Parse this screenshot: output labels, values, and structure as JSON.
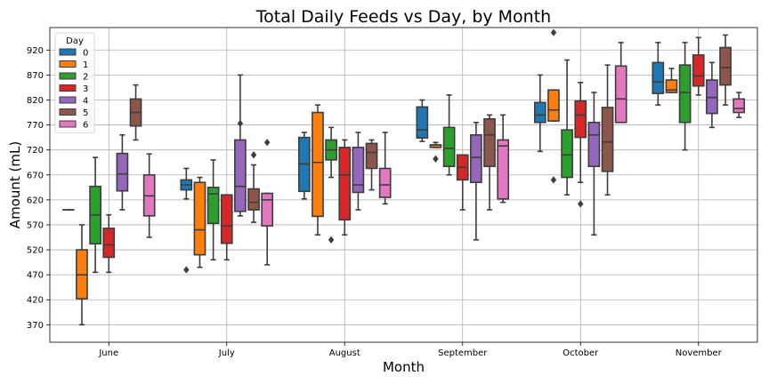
{
  "chart_data": {
    "type": "boxplot",
    "title": "Total Daily Feeds vs Day, by Month",
    "xlabel": "Month",
    "ylabel": "Amount (mL)",
    "categories": [
      "June",
      "July",
      "August",
      "September",
      "October",
      "November"
    ],
    "yticks": [
      370,
      420,
      470,
      520,
      570,
      620,
      670,
      720,
      770,
      820,
      870,
      920
    ],
    "ylim": [
      335,
      965
    ],
    "grid": true,
    "legend": {
      "title": "Day",
      "position": "top-left"
    },
    "series": [
      {
        "name": "0",
        "color": "#1f77b4",
        "boxes": [
          {
            "min": 600,
            "q1": 600,
            "median": 600,
            "q3": 600,
            "max": 600,
            "outliers": []
          },
          {
            "min": 622,
            "q1": 640,
            "median": 650,
            "q3": 660,
            "max": 683,
            "outliers": [
              480
            ]
          },
          {
            "min": 622,
            "q1": 637,
            "median": 692,
            "q3": 745,
            "max": 755,
            "outliers": []
          },
          {
            "min": 737,
            "q1": 744,
            "median": 760,
            "q3": 806,
            "max": 820,
            "outliers": []
          },
          {
            "min": 717,
            "q1": 775,
            "median": 790,
            "q3": 815,
            "max": 870,
            "outliers": []
          },
          {
            "min": 810,
            "q1": 833,
            "median": 856,
            "q3": 895,
            "max": 935,
            "outliers": []
          }
        ]
      },
      {
        "name": "1",
        "color": "#ff7f0e",
        "boxes": [
          {
            "min": 370,
            "q1": 422,
            "median": 470,
            "q3": 520,
            "max": 570,
            "outliers": []
          },
          {
            "min": 485,
            "q1": 510,
            "median": 560,
            "q3": 655,
            "max": 665,
            "outliers": []
          },
          {
            "min": 550,
            "q1": 587,
            "median": 695,
            "q3": 795,
            "max": 810,
            "outliers": []
          },
          {
            "min": 725,
            "q1": 725,
            "median": 730,
            "q3": 730,
            "max": 735,
            "outliers": [
              702
            ]
          },
          {
            "min": 778,
            "q1": 778,
            "median": 800,
            "q3": 840,
            "max": 840,
            "outliers": [
              660,
              955
            ]
          },
          {
            "min": 835,
            "q1": 835,
            "median": 840,
            "q3": 860,
            "max": 883,
            "outliers": []
          }
        ]
      },
      {
        "name": "2",
        "color": "#2ca02c",
        "boxes": [
          {
            "min": 475,
            "q1": 532,
            "median": 590,
            "q3": 647,
            "max": 705,
            "outliers": []
          },
          {
            "min": 500,
            "q1": 573,
            "median": 632,
            "q3": 645,
            "max": 700,
            "outliers": []
          },
          {
            "min": 665,
            "q1": 700,
            "median": 720,
            "q3": 740,
            "max": 765,
            "outliers": [
              540
            ]
          },
          {
            "min": 670,
            "q1": 687,
            "median": 723,
            "q3": 765,
            "max": 830,
            "outliers": []
          },
          {
            "min": 630,
            "q1": 665,
            "median": 710,
            "q3": 760,
            "max": 900,
            "outliers": []
          },
          {
            "min": 720,
            "q1": 775,
            "median": 835,
            "q3": 890,
            "max": 935,
            "outliers": []
          }
        ]
      },
      {
        "name": "3",
        "color": "#d62728",
        "boxes": [
          {
            "min": 475,
            "q1": 505,
            "median": 530,
            "q3": 563,
            "max": 590,
            "outliers": []
          },
          {
            "min": 500,
            "q1": 533,
            "median": 568,
            "q3": 630,
            "max": 630,
            "outliers": []
          },
          {
            "min": 550,
            "q1": 580,
            "median": 670,
            "q3": 725,
            "max": 740,
            "outliers": []
          },
          {
            "min": 600,
            "q1": 660,
            "median": 685,
            "q3": 710,
            "max": 710,
            "outliers": []
          },
          {
            "min": 655,
            "q1": 745,
            "median": 790,
            "q3": 818,
            "max": 855,
            "outliers": [
              612
            ]
          },
          {
            "min": 830,
            "q1": 848,
            "median": 868,
            "q3": 910,
            "max": 945,
            "outliers": []
          }
        ]
      },
      {
        "name": "4",
        "color": "#9467bd",
        "boxes": [
          {
            "min": 600,
            "q1": 638,
            "median": 672,
            "q3": 713,
            "max": 750,
            "outliers": []
          },
          {
            "min": 588,
            "q1": 597,
            "median": 647,
            "q3": 740,
            "max": 870,
            "outliers": [
              773
            ]
          },
          {
            "min": 600,
            "q1": 635,
            "median": 650,
            "q3": 725,
            "max": 755,
            "outliers": []
          },
          {
            "min": 540,
            "q1": 655,
            "median": 705,
            "q3": 750,
            "max": 775,
            "outliers": []
          },
          {
            "min": 550,
            "q1": 687,
            "median": 750,
            "q3": 775,
            "max": 835,
            "outliers": []
          },
          {
            "min": 765,
            "q1": 793,
            "median": 825,
            "q3": 860,
            "max": 895,
            "outliers": []
          }
        ]
      },
      {
        "name": "5",
        "color": "#8c564b",
        "boxes": [
          {
            "min": 740,
            "q1": 768,
            "median": 795,
            "q3": 822,
            "max": 850,
            "outliers": []
          },
          {
            "min": 575,
            "q1": 600,
            "median": 615,
            "q3": 642,
            "max": 690,
            "outliers": [
              710
            ]
          },
          {
            "min": 640,
            "q1": 683,
            "median": 715,
            "q3": 733,
            "max": 740,
            "outliers": []
          },
          {
            "min": 600,
            "q1": 687,
            "median": 750,
            "q3": 782,
            "max": 790,
            "outliers": []
          },
          {
            "min": 630,
            "q1": 677,
            "median": 736,
            "q3": 805,
            "max": 890,
            "outliers": []
          },
          {
            "min": 810,
            "q1": 850,
            "median": 885,
            "q3": 925,
            "max": 950,
            "outliers": []
          }
        ]
      },
      {
        "name": "6",
        "color": "#e377c2",
        "boxes": [
          {
            "min": 545,
            "q1": 588,
            "median": 628,
            "q3": 670,
            "max": 712,
            "outliers": []
          },
          {
            "min": 490,
            "q1": 568,
            "median": 620,
            "q3": 633,
            "max": 633,
            "outliers": [
              735
            ]
          },
          {
            "min": 612,
            "q1": 625,
            "median": 650,
            "q3": 683,
            "max": 755,
            "outliers": []
          },
          {
            "min": 615,
            "q1": 622,
            "median": 728,
            "q3": 740,
            "max": 790,
            "outliers": []
          },
          {
            "min": 775,
            "q1": 775,
            "median": 822,
            "q3": 888,
            "max": 935,
            "outliers": []
          },
          {
            "min": 785,
            "q1": 795,
            "median": 803,
            "q3": 822,
            "max": 835,
            "outliers": []
          }
        ]
      }
    ]
  }
}
